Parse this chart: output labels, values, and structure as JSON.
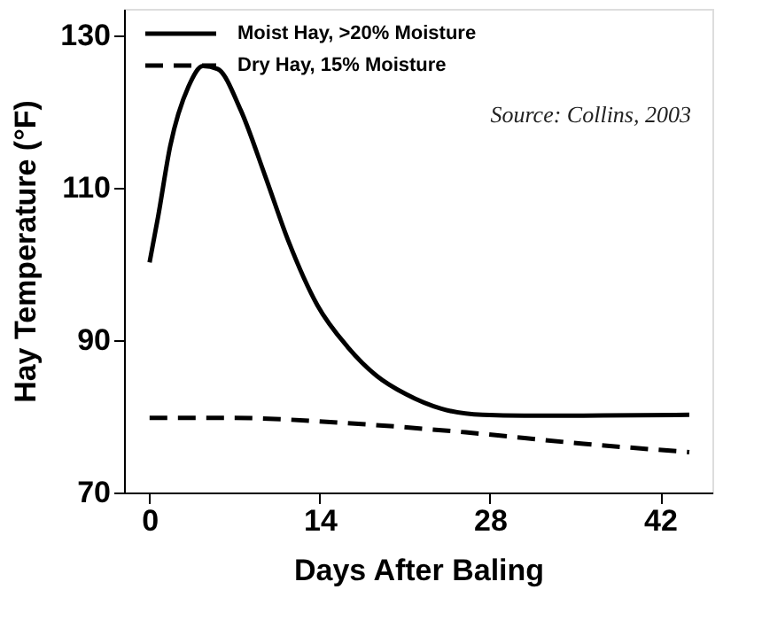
{
  "chart_data": {
    "type": "line",
    "xlabel": "Days After Baling",
    "ylabel": "Hay Temperature (°F)",
    "xlim": [
      -2.1,
      46.3
    ],
    "xticks": [
      0,
      14,
      28,
      42
    ],
    "ylim": [
      70,
      133.5
    ],
    "yticks": [
      70,
      90,
      110,
      130
    ],
    "grid": false,
    "legend": "top left",
    "marker": "none",
    "annotations": [
      "Source:  Collins, 2003"
    ],
    "series": [
      {
        "name": "Moist Hay, >20% Moisture",
        "color": "#000000",
        "line_style": "solid",
        "x": [
          0,
          0.7,
          1.7,
          3.2,
          4.4,
          5.6,
          7.5,
          9.5,
          11.4,
          13.8,
          16.3,
          18.7,
          21.1,
          24,
          27.4,
          30.8,
          35.7,
          44.4
        ],
        "values": [
          100.2,
          106.2,
          115.5,
          123.3,
          126,
          125.6,
          120.2,
          111.6,
          103.1,
          94.6,
          89.1,
          85.3,
          82.9,
          81,
          80.2,
          80.1,
          80.1,
          80.2
        ]
      },
      {
        "name": "Dry Hay, 15% Moisture",
        "color": "#000000",
        "line_style": "dashed",
        "x": [
          0,
          6.6,
          16.3,
          26,
          35.7,
          44.4
        ],
        "values": [
          79.8,
          79.8,
          79.1,
          77.9,
          76.4,
          75.3
        ]
      }
    ]
  }
}
